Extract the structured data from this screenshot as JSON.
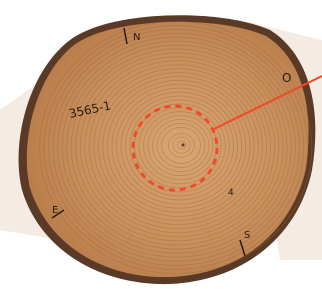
{
  "labels": {
    "sample_id": "3565-1",
    "north": "N",
    "east": "O",
    "west": "E",
    "south": "S",
    "ring_mark": "4"
  }
}
